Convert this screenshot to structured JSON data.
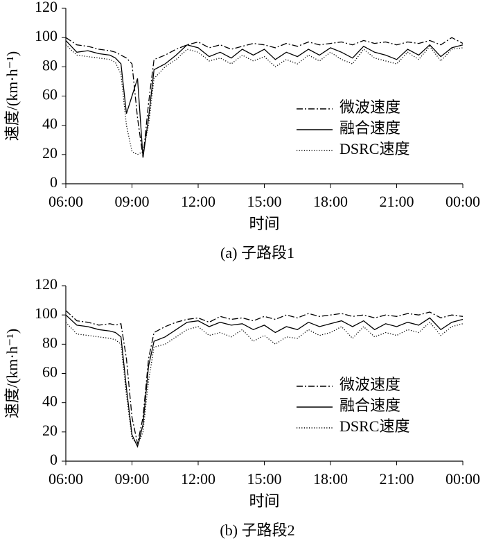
{
  "chart_data": [
    {
      "type": "line",
      "caption": "(a) 子路段1",
      "x_label": "时间",
      "y_label": "速度/(km·h⁻¹)",
      "x": [
        6,
        6.5,
        7,
        7.5,
        8,
        8.25,
        8.5,
        8.75,
        9,
        9.25,
        9.5,
        9.75,
        10,
        10.5,
        11,
        11.5,
        12,
        12.5,
        13,
        13.5,
        14,
        14.5,
        15,
        15.5,
        16,
        16.5,
        17,
        17.5,
        18,
        18.5,
        19,
        19.5,
        20,
        20.5,
        21,
        21.5,
        22,
        22.5,
        23,
        23.5,
        24
      ],
      "xlim": [
        6,
        24
      ],
      "xticks": [
        {
          "value": 6,
          "label": "06:00"
        },
        {
          "value": 9,
          "label": "09:00"
        },
        {
          "value": 12,
          "label": "12:00"
        },
        {
          "value": 15,
          "label": "15:00"
        },
        {
          "value": 18,
          "label": "18:00"
        },
        {
          "value": 21,
          "label": "21:00"
        },
        {
          "value": 24,
          "label": "00:00"
        }
      ],
      "ylim": [
        0,
        120
      ],
      "yticks": [
        0,
        20,
        40,
        60,
        80,
        100,
        120
      ],
      "legend": "right",
      "series": [
        {
          "name": "微波速度",
          "color": "#000000",
          "dash": "dashdot",
          "values": [
            100,
            95,
            94,
            92,
            91,
            90,
            88,
            86,
            82,
            45,
            18,
            55,
            85,
            88,
            92,
            95,
            97,
            93,
            95,
            92,
            94,
            96,
            95,
            93,
            96,
            94,
            97,
            95,
            96,
            97,
            95,
            98,
            96,
            97,
            95,
            97,
            96,
            98,
            95,
            100,
            96
          ]
        },
        {
          "name": "融合速度",
          "color": "#000000",
          "dash": "solid",
          "values": [
            98,
            90,
            91,
            89,
            88,
            86,
            82,
            48,
            60,
            72,
            18,
            45,
            78,
            82,
            88,
            95,
            93,
            87,
            90,
            86,
            92,
            88,
            92,
            85,
            90,
            87,
            92,
            88,
            93,
            90,
            86,
            94,
            90,
            88,
            85,
            92,
            88,
            95,
            87,
            93,
            95
          ]
        },
        {
          "name": "DSRC速度",
          "color": "#000000",
          "dash": "dotted",
          "values": [
            95,
            88,
            87,
            86,
            85,
            83,
            75,
            40,
            22,
            20,
            22,
            40,
            72,
            80,
            85,
            92,
            90,
            84,
            86,
            82,
            88,
            84,
            87,
            80,
            85,
            82,
            88,
            84,
            90,
            85,
            82,
            92,
            86,
            84,
            82,
            90,
            85,
            94,
            84,
            92,
            93
          ]
        }
      ]
    },
    {
      "type": "line",
      "caption": "(b) 子路段2",
      "x_label": "时间",
      "y_label": "速度/(km·h⁻¹)",
      "x": [
        6,
        6.5,
        7,
        7.5,
        8,
        8.25,
        8.5,
        8.75,
        9,
        9.25,
        9.5,
        9.75,
        10,
        10.5,
        11,
        11.5,
        12,
        12.5,
        13,
        13.5,
        14,
        14.5,
        15,
        15.5,
        16,
        16.5,
        17,
        17.5,
        18,
        18.5,
        19,
        19.5,
        20,
        20.5,
        21,
        21.5,
        22,
        22.5,
        23,
        23.5,
        24
      ],
      "xlim": [
        6,
        24
      ],
      "xticks": [
        {
          "value": 6,
          "label": "06:00"
        },
        {
          "value": 9,
          "label": "09:00"
        },
        {
          "value": 12,
          "label": "12:00"
        },
        {
          "value": 15,
          "label": "15:00"
        },
        {
          "value": 18,
          "label": "18:00"
        },
        {
          "value": 21,
          "label": "21:00"
        },
        {
          "value": 24,
          "label": "00:00"
        }
      ],
      "ylim": [
        0,
        120
      ],
      "yticks": [
        0,
        20,
        40,
        60,
        80,
        100,
        120
      ],
      "legend": "right",
      "series": [
        {
          "name": "微波速度",
          "color": "#000000",
          "dash": "dashdot",
          "values": [
            103,
            96,
            95,
            93,
            94,
            93,
            94,
            70,
            30,
            12,
            30,
            70,
            88,
            92,
            95,
            97,
            98,
            95,
            99,
            97,
            98,
            96,
            99,
            97,
            100,
            98,
            101,
            99,
            100,
            101,
            99,
            100,
            98,
            100,
            99,
            101,
            100,
            102,
            98,
            100,
            99
          ]
        },
        {
          "name": "融合速度",
          "color": "#000000",
          "dash": "solid",
          "values": [
            100,
            93,
            92,
            90,
            89,
            88,
            85,
            50,
            18,
            10,
            25,
            65,
            82,
            85,
            90,
            95,
            96,
            92,
            95,
            93,
            94,
            90,
            93,
            88,
            92,
            90,
            95,
            92,
            94,
            96,
            92,
            96,
            90,
            94,
            92,
            95,
            93,
            98,
            90,
            95,
            97
          ]
        },
        {
          "name": "DSRC速度",
          "color": "#000000",
          "dash": "dotted",
          "values": [
            95,
            87,
            86,
            85,
            84,
            83,
            80,
            45,
            16,
            11,
            20,
            55,
            78,
            80,
            85,
            90,
            92,
            86,
            88,
            85,
            90,
            82,
            86,
            80,
            85,
            84,
            90,
            86,
            88,
            92,
            84,
            92,
            85,
            88,
            86,
            90,
            88,
            95,
            86,
            92,
            94
          ]
        }
      ]
    }
  ]
}
